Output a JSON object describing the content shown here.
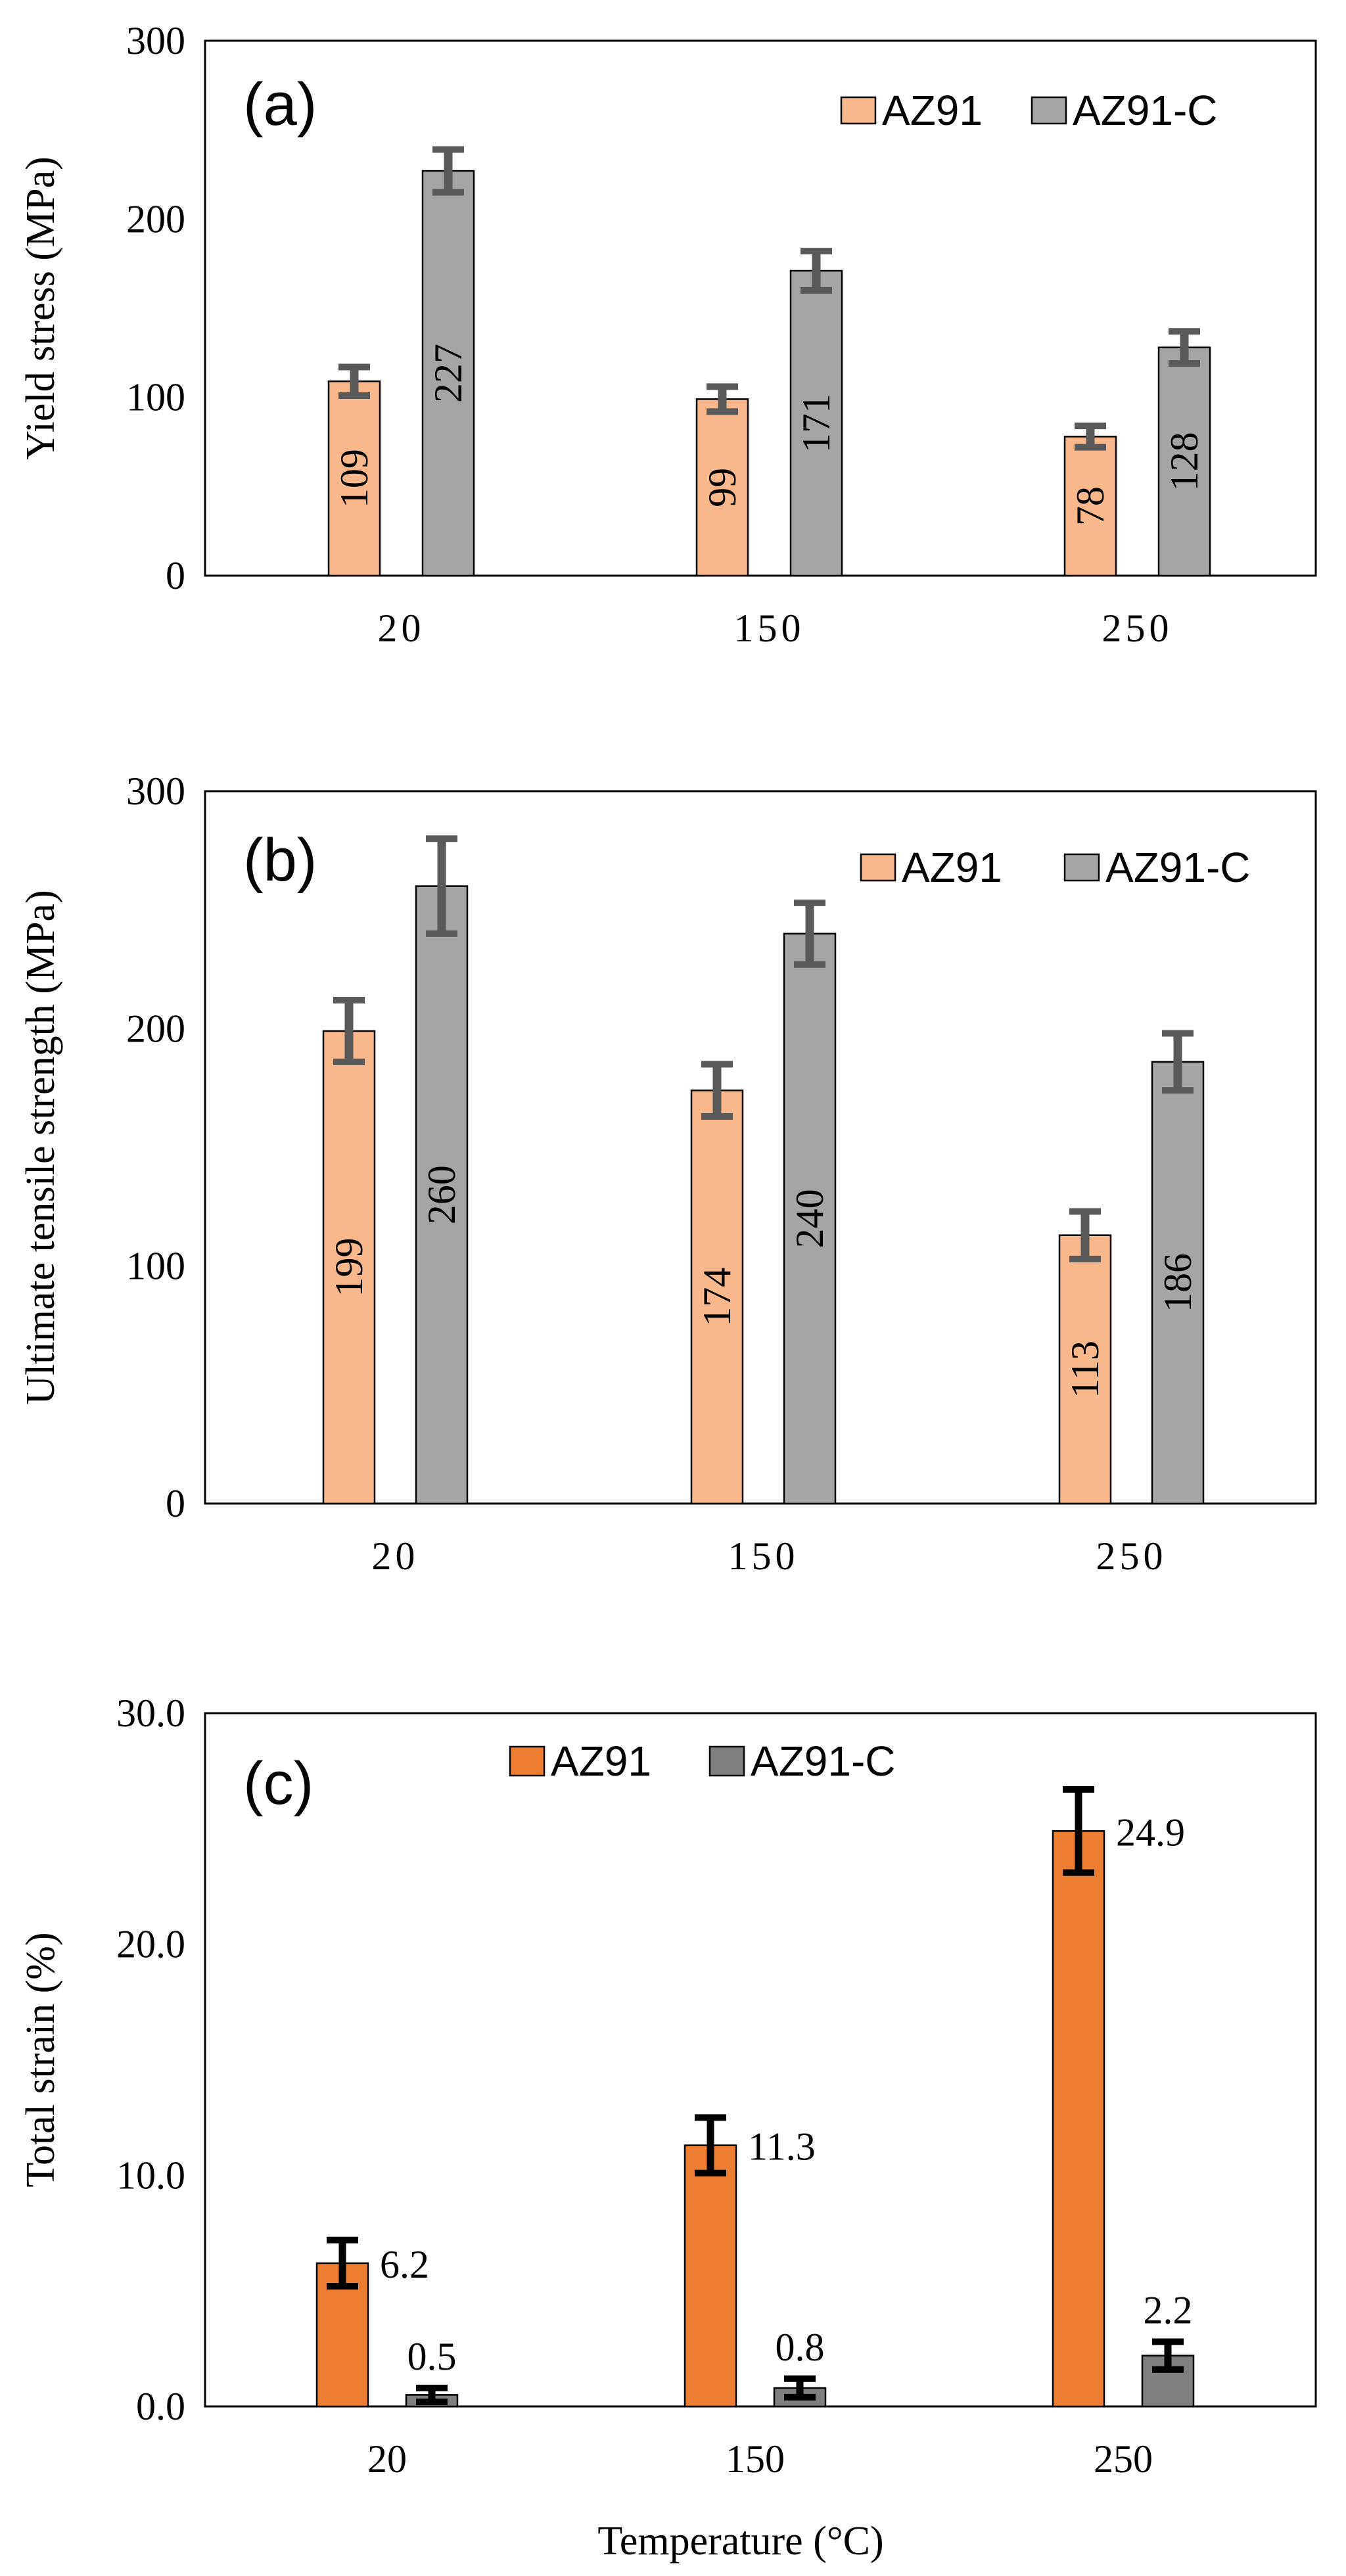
{
  "figure": {
    "xlabel": "Temperature (°C)"
  },
  "colors": {
    "az91_light": "#f8b88b",
    "az91_dark": "#ed7d31",
    "az91c_gray": "#a5a5a5",
    "az91c_dark_gray": "#7f7f7f",
    "error_gray": "#595959",
    "error_black": "#000000",
    "bar_outline": "#000000"
  },
  "chart_data": [
    {
      "id": "a",
      "type": "bar",
      "panel_label": "(a)",
      "title": "",
      "xlabel": "",
      "ylabel": "Yield stress (MPa)",
      "categories": [
        "20",
        "150",
        "250"
      ],
      "ylim": [
        0,
        300
      ],
      "yticks": [
        0,
        100,
        200,
        300
      ],
      "ytick_labels": [
        "0",
        "100",
        "200",
        "300"
      ],
      "legend": "top-right",
      "grid": false,
      "label_style": "vertical-inside",
      "series": [
        {
          "name": "AZ91",
          "values": [
            109,
            99,
            78
          ],
          "errors": [
            8,
            7,
            6
          ],
          "labels": [
            "109",
            "99",
            "78"
          ],
          "color": "#f8b88b",
          "error_color": "#595959"
        },
        {
          "name": "AZ91-C",
          "values": [
            227,
            171,
            128
          ],
          "errors": [
            12,
            11,
            9
          ],
          "labels": [
            "227",
            "171",
            "128"
          ],
          "color": "#a5a5a5",
          "error_color": "#595959"
        }
      ]
    },
    {
      "id": "b",
      "type": "bar",
      "panel_label": "(b)",
      "title": "",
      "xlabel": "",
      "ylabel": "Ultimate tensile strength (MPa)",
      "categories": [
        "20",
        "150",
        "250"
      ],
      "ylim": [
        0,
        300
      ],
      "yticks": [
        0,
        100,
        200,
        300
      ],
      "ytick_labels": [
        "0",
        "100",
        "200",
        "300"
      ],
      "legend": "top-right",
      "grid": false,
      "label_style": "vertical-inside",
      "series": [
        {
          "name": "AZ91",
          "values": [
            199,
            174,
            113
          ],
          "errors": [
            13,
            11,
            10
          ],
          "labels": [
            "199",
            "174",
            "113"
          ],
          "color": "#f8b88b",
          "error_color": "#595959"
        },
        {
          "name": "AZ91-C",
          "values": [
            260,
            240,
            186
          ],
          "errors": [
            20,
            13,
            12
          ],
          "labels": [
            "260",
            "240",
            "186"
          ],
          "color": "#a5a5a5",
          "error_color": "#595959"
        }
      ]
    },
    {
      "id": "c",
      "type": "bar",
      "panel_label": "(c)",
      "title": "",
      "xlabel": "Temperature (°C)",
      "ylabel": "Total strain (%)",
      "categories": [
        "20",
        "150",
        "250"
      ],
      "ylim": [
        0,
        30
      ],
      "yticks": [
        0,
        10,
        20,
        30
      ],
      "ytick_labels": [
        "0.0",
        "10.0",
        "20.0",
        "30.0"
      ],
      "legend": "top-center",
      "grid": false,
      "label_style": "horizontal-outside",
      "series": [
        {
          "name": "AZ91",
          "values": [
            6.2,
            11.3,
            24.9
          ],
          "errors": [
            1.0,
            1.2,
            1.8
          ],
          "labels": [
            "6.2",
            "11.3",
            "24.9"
          ],
          "color": "#ed7d31",
          "error_color": "#000000"
        },
        {
          "name": "AZ91-C",
          "values": [
            0.5,
            0.8,
            2.2
          ],
          "errors": [
            0.3,
            0.4,
            0.6
          ],
          "labels": [
            "0.5",
            "0.8",
            "2.2"
          ],
          "color": "#7f7f7f",
          "error_color": "#000000"
        }
      ]
    }
  ]
}
